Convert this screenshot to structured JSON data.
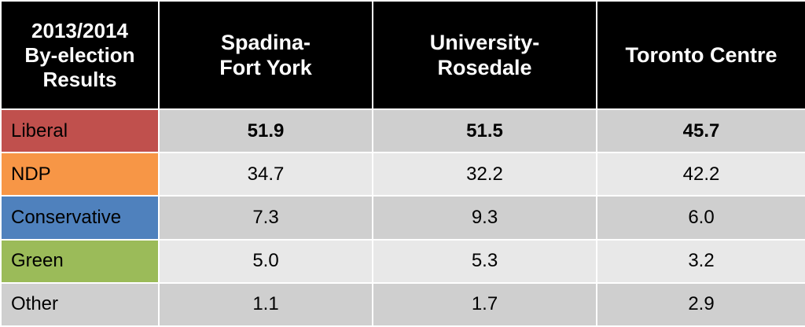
{
  "chart_data": {
    "type": "table",
    "corner_header": [
      "2013/2014",
      "By-election",
      "Results"
    ],
    "columns": [
      {
        "name": "Spadina-Fort York",
        "label_lines": [
          "Spadina-",
          "Fort York"
        ]
      },
      {
        "name": "University-Rosedale",
        "label_lines": [
          "University-",
          "Rosedale"
        ]
      },
      {
        "name": "Toronto Centre",
        "label_lines": [
          "Toronto Centre"
        ]
      }
    ],
    "rows": [
      {
        "party": "Liberal",
        "color": "#c0504d",
        "values": [
          "51.9",
          "51.5",
          "45.7"
        ],
        "bold": true
      },
      {
        "party": "NDP",
        "color": "#f79646",
        "values": [
          "34.7",
          "32.2",
          "42.2"
        ],
        "bold": false
      },
      {
        "party": "Conservative",
        "color": "#4f81bd",
        "values": [
          "7.3",
          "9.3",
          "6.0"
        ],
        "bold": false
      },
      {
        "party": "Green",
        "color": "#9bbb59",
        "values": [
          "5.0",
          "5.3",
          "3.2"
        ],
        "bold": false
      },
      {
        "party": "Other",
        "color": "",
        "values": [
          "1.1",
          "1.7",
          "2.9"
        ],
        "bold": false
      }
    ]
  }
}
